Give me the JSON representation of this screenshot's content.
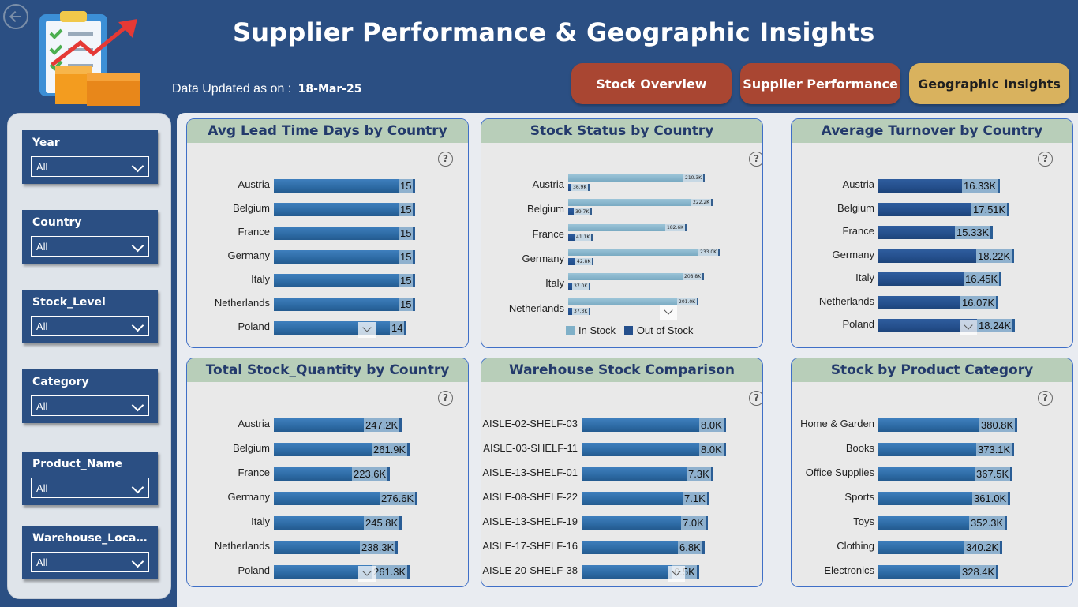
{
  "header": {
    "title": "Supplier Performance & Geographic Insights",
    "updated_label": "Data Updated as on :",
    "updated_value": "18-Mar-25"
  },
  "nav": {
    "stock_overview": "Stock Overview",
    "supplier_performance": "Supplier Performance",
    "geographic_insights": "Geographic Insights"
  },
  "colors": {
    "background": "#2b4f83",
    "nav_red": "#a94632",
    "nav_gold": "#d9b25e",
    "card_title_bg": "#b8ceb9"
  },
  "icons": {
    "back": "back-arrow-icon",
    "logo": "clipboard-boxes-growth-icon",
    "help": "question-icon",
    "dropdown": "chevron-down-icon"
  },
  "slicers": [
    {
      "label": "Year",
      "value": "All"
    },
    {
      "label": "Country",
      "value": "All"
    },
    {
      "label": "Stock_Level",
      "value": "All"
    },
    {
      "label": "Category",
      "value": "All"
    },
    {
      "label": "Product_Name",
      "value": "All"
    },
    {
      "label": "Warehouse_Locati...",
      "value": "All"
    }
  ],
  "help_glyph": "?",
  "chart_data": [
    {
      "type": "bar",
      "title": "Avg Lead Time Days by Country",
      "categories": [
        "Austria",
        "Belgium",
        "France",
        "Germany",
        "Italy",
        "Netherlands",
        "Poland"
      ],
      "values": [
        15,
        15,
        15,
        15,
        15,
        15,
        14
      ],
      "labels": [
        "15",
        "15",
        "15",
        "15",
        "15",
        "15",
        "14"
      ]
    },
    {
      "type": "bar",
      "title": "Stock Status by Country",
      "categories": [
        "Austria",
        "Belgium",
        "France",
        "Germany",
        "Italy",
        "Netherlands"
      ],
      "series": [
        {
          "name": "In Stock",
          "values": [
            210.3,
            222.2,
            182.6,
            233.0,
            208.8,
            201.0
          ],
          "labels": [
            "210.3K",
            "222.2K",
            "182.6K",
            "233.0K",
            "208.8K",
            "201.0K"
          ]
        },
        {
          "name": "Out of Stock",
          "values": [
            36.9,
            39.7,
            41.1,
            42.8,
            37.0,
            37.3
          ],
          "labels": [
            "36.9K",
            "39.7K",
            "41.1K",
            "42.8K",
            "37.0K",
            "37.3K"
          ]
        }
      ],
      "legend": "bottom"
    },
    {
      "type": "bar",
      "title": "Average Turnover by Country",
      "categories": [
        "Austria",
        "Belgium",
        "France",
        "Germany",
        "Italy",
        "Netherlands",
        "Poland"
      ],
      "values": [
        16.33,
        17.51,
        15.33,
        18.22,
        16.45,
        16.07,
        18.24
      ],
      "labels": [
        "16.33K",
        "17.51K",
        "15.33K",
        "18.22K",
        "16.45K",
        "16.07K",
        "18.24K"
      ]
    },
    {
      "type": "bar",
      "title": "Total Stock_Quantity by Country",
      "categories": [
        "Austria",
        "Belgium",
        "France",
        "Germany",
        "Italy",
        "Netherlands",
        "Poland"
      ],
      "values": [
        247.2,
        261.9,
        223.6,
        276.6,
        245.8,
        238.3,
        261.3
      ],
      "labels": [
        "247.2K",
        "261.9K",
        "223.6K",
        "276.6K",
        "245.8K",
        "238.3K",
        "261.3K"
      ]
    },
    {
      "type": "bar",
      "title": "Warehouse Stock Comparison",
      "categories": [
        "AISLE-02-SHELF-03",
        "AISLE-03-SHELF-11",
        "AISLE-13-SHELF-01",
        "AISLE-08-SHELF-22",
        "AISLE-13-SHELF-19",
        "AISLE-17-SHELF-16",
        "AISLE-20-SHELF-38"
      ],
      "values": [
        8.0,
        8.0,
        7.3,
        7.1,
        7.0,
        6.8,
        6.5
      ],
      "labels": [
        "8.0K",
        "8.0K",
        "7.3K",
        "7.1K",
        "7.0K",
        "6.8K",
        "6.5K"
      ]
    },
    {
      "type": "bar",
      "title": "Stock by Product Category",
      "categories": [
        "Home & Garden",
        "Books",
        "Office Supplies",
        "Sports",
        "Toys",
        "Clothing",
        "Electronics"
      ],
      "values": [
        380.8,
        373.1,
        367.5,
        361.0,
        352.3,
        340.2,
        328.4
      ],
      "labels": [
        "380.8K",
        "373.1K",
        "367.5K",
        "361.0K",
        "352.3K",
        "340.2K",
        "328.4K"
      ]
    }
  ]
}
